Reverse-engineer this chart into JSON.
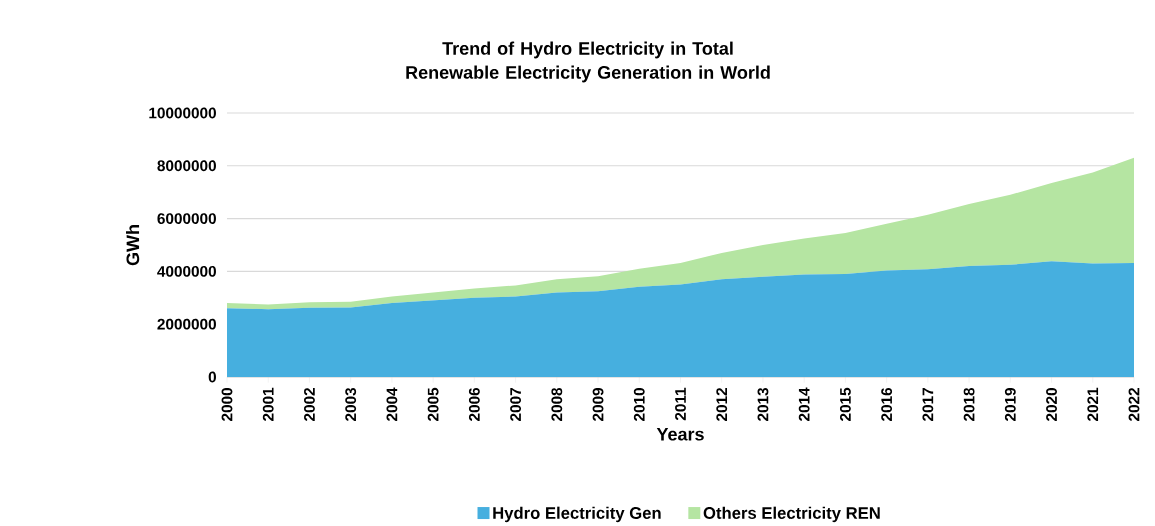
{
  "chart_data": {
    "type": "area",
    "title": "Trend of Hydro Electricity in Total Renewable Electricity Generation in World",
    "xlabel": "Years",
    "ylabel": "GWh",
    "categories": [
      "2000",
      "2001",
      "2002",
      "2003",
      "2004",
      "2005",
      "2006",
      "2007",
      "2008",
      "2009",
      "2010",
      "2011",
      "2012",
      "2013",
      "2014",
      "2015",
      "2016",
      "2017",
      "2018",
      "2019",
      "2020",
      "2021",
      "2022"
    ],
    "stacked": true,
    "series": [
      {
        "name": "Hydro Electricity Gen",
        "color": "#46afdf",
        "values": [
          2600000,
          2570000,
          2620000,
          2630000,
          2800000,
          2900000,
          3000000,
          3050000,
          3200000,
          3250000,
          3420000,
          3500000,
          3700000,
          3800000,
          3880000,
          3900000,
          4030000,
          4080000,
          4200000,
          4250000,
          4380000,
          4300000,
          4320000
        ]
      },
      {
        "name": "Others Electricity REN",
        "color": "#b5e5a2",
        "values": [
          200000,
          180000,
          210000,
          220000,
          250000,
          300000,
          350000,
          420000,
          500000,
          570000,
          680000,
          820000,
          1000000,
          1200000,
          1370000,
          1550000,
          1770000,
          2070000,
          2350000,
          2650000,
          2970000,
          3450000,
          3980000
        ]
      }
    ],
    "ylim": [
      0,
      10000000
    ],
    "yticks": [
      0,
      2000000,
      4000000,
      6000000,
      8000000,
      10000000
    ],
    "grid": "y",
    "legend": "bottom"
  }
}
